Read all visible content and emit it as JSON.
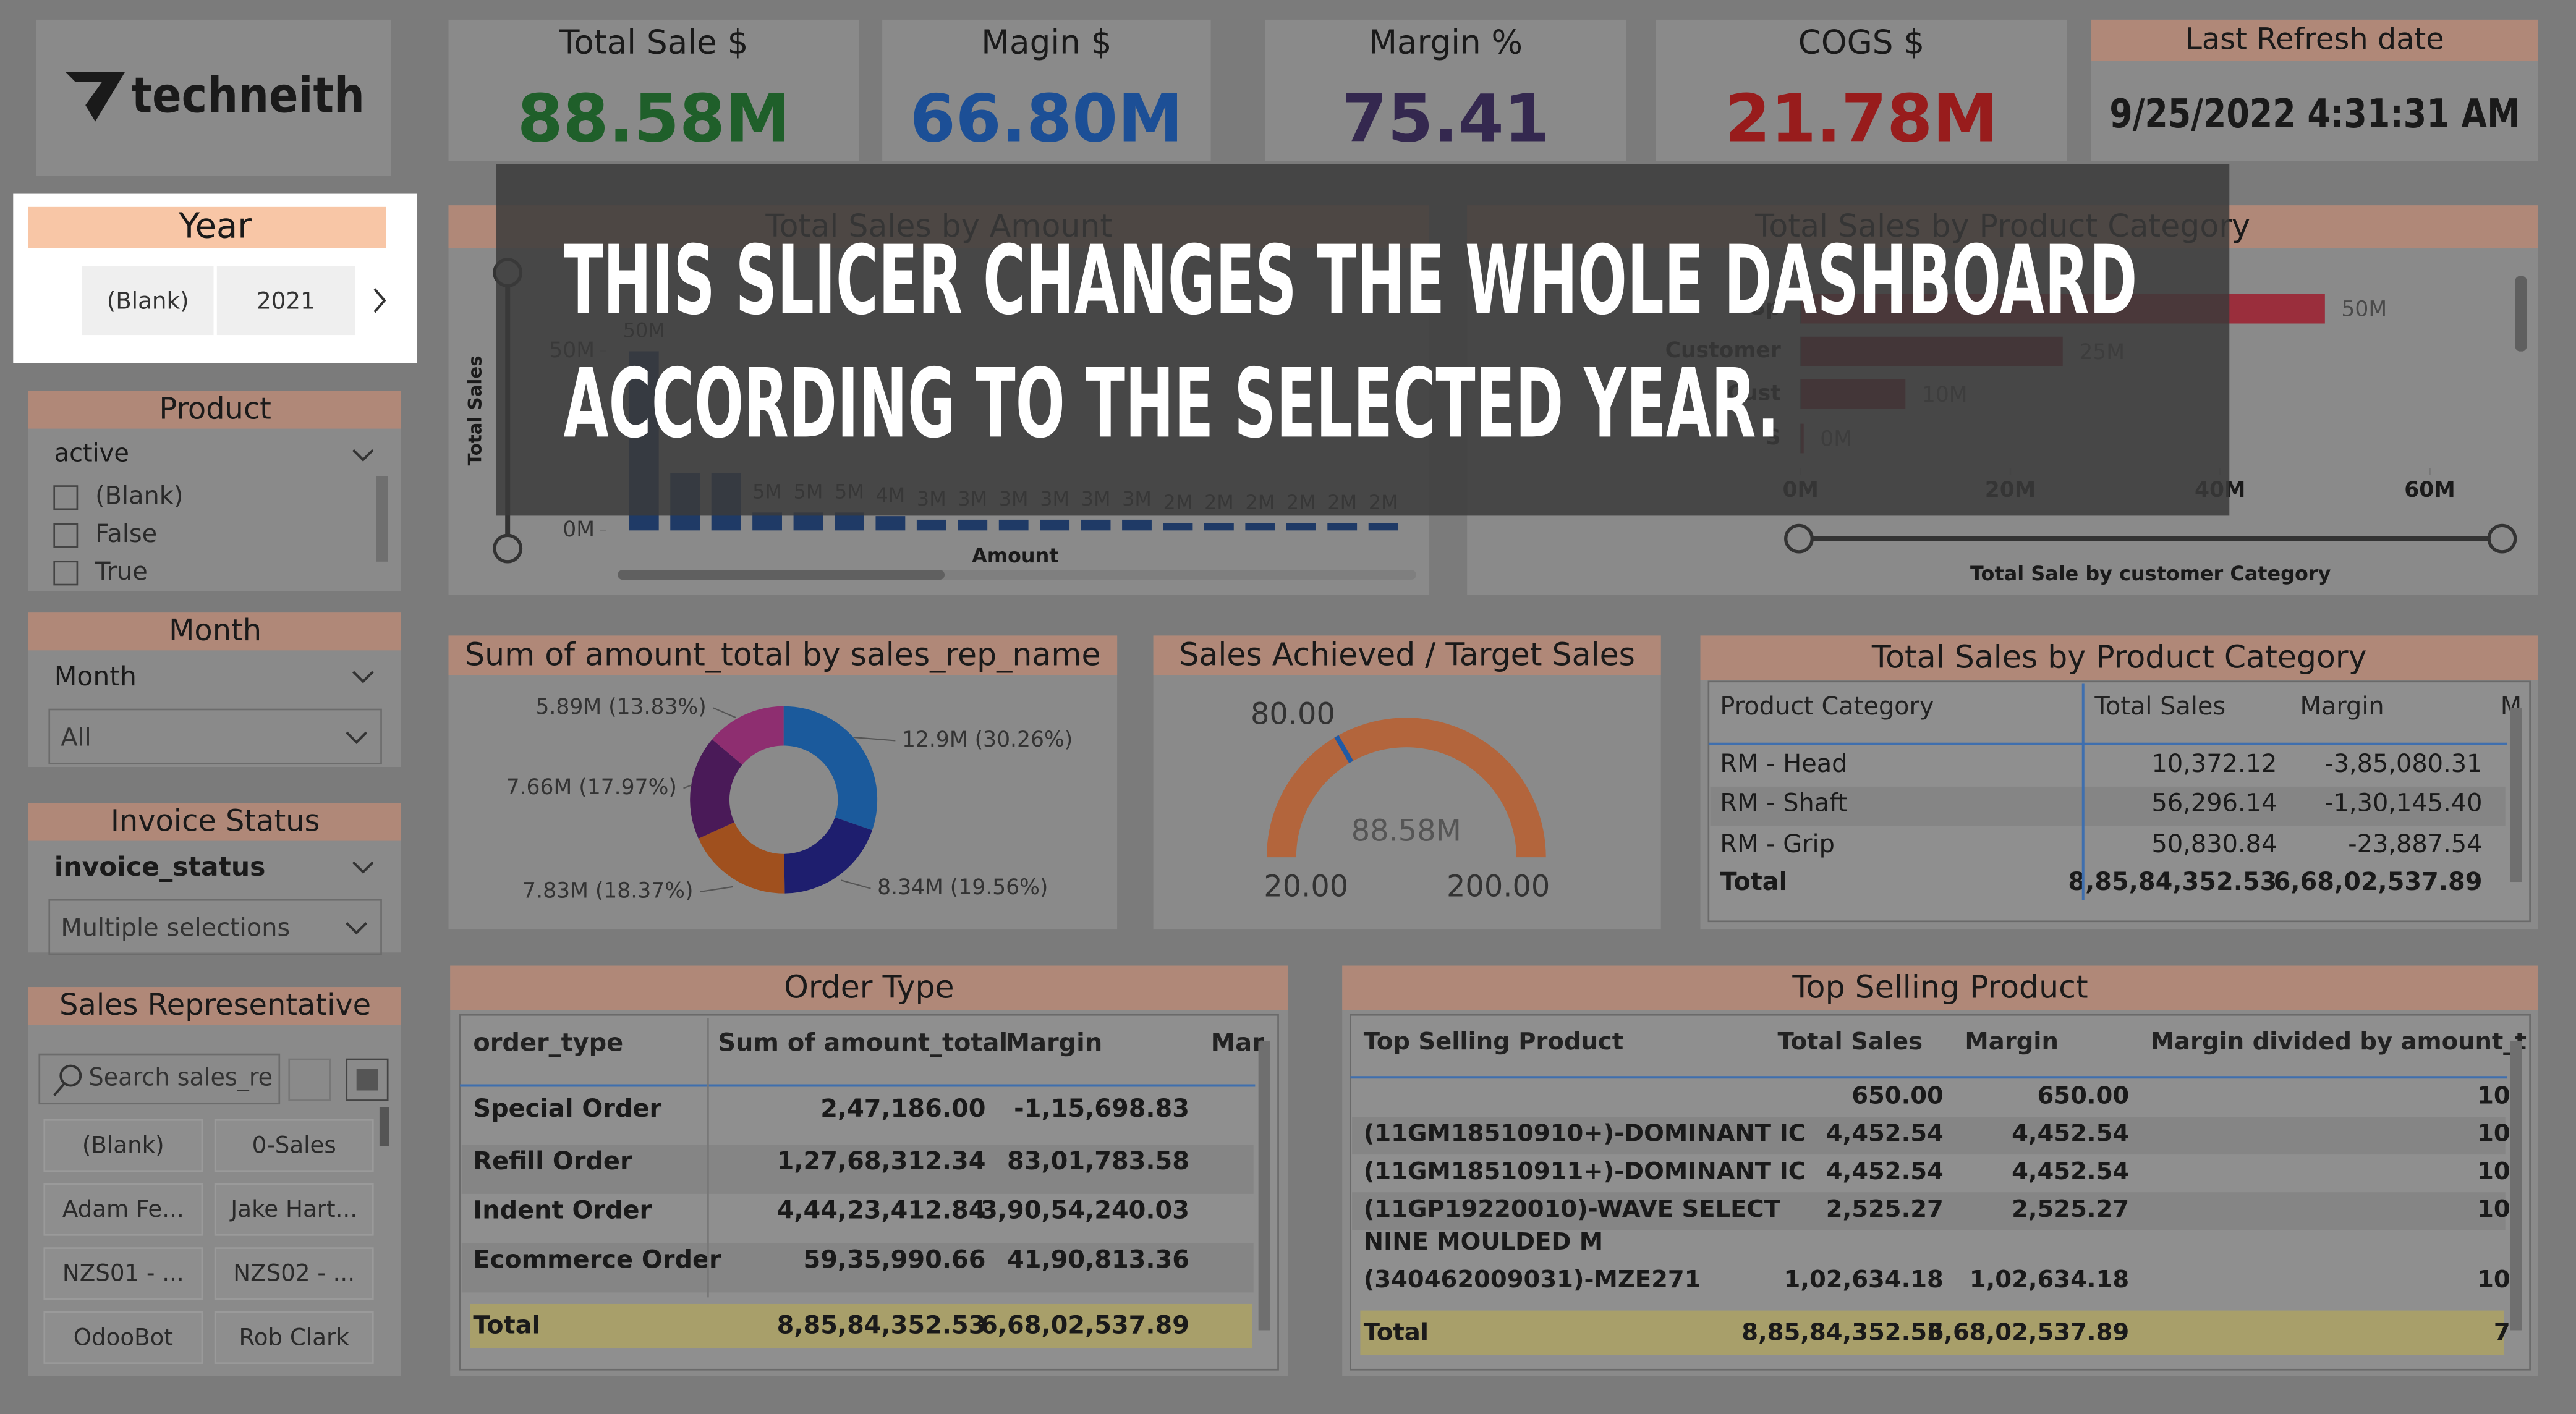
{
  "logo": "techneith",
  "kpis": [
    {
      "title": "Total Sale $",
      "value": "88.58M",
      "color": "#1f5f2a"
    },
    {
      "title": "Magin $",
      "value": "66.80M",
      "color": "#1c4f96"
    },
    {
      "title": "Margin %",
      "value": "75.41",
      "color": "#34284f"
    },
    {
      "title": "COGS $",
      "value": "21.78M",
      "color": "#981c1c"
    }
  ],
  "refresh": {
    "title": "Last Refresh date",
    "value": "9/25/2022 4:31:31 AM"
  },
  "overlay": {
    "lines": [
      "THIS SLICER CHANGES THE WHOLE DASHBOARD",
      "ACCORDING TO THE SELECTED YEAR."
    ]
  },
  "slicers": {
    "year": {
      "title": "Year",
      "options": [
        "(Blank)",
        "2021"
      ]
    },
    "product": {
      "title": "Product",
      "field": "active",
      "options": [
        "(Blank)",
        "False",
        "True"
      ]
    },
    "month": {
      "title": "Month",
      "field": "Month",
      "value": "All"
    },
    "invoice": {
      "title": "Invoice Status",
      "field": "invoice_status",
      "value": "Multiple selections"
    },
    "rep": {
      "title": "Sales Representative",
      "search": "Search sales_re",
      "options": [
        "(Blank)",
        "0-Sales",
        "Adam Fe...",
        "Jake Hart...",
        "NZS01 - ...",
        "NZS02 - ...",
        "OdooBot",
        "Rob Clark"
      ]
    }
  },
  "bar_chart": {
    "type": "bar",
    "title": "Total Sales by Amount",
    "y_label": "Total Sales",
    "x_label": "Amount",
    "values": [
      50,
      16,
      16,
      5,
      5,
      5,
      4,
      3,
      3,
      3,
      3,
      3,
      3,
      2,
      2,
      2,
      2,
      2,
      2
    ],
    "value_labels": [
      "50M",
      null,
      null,
      "5M",
      "5M",
      "5M",
      "4M",
      "3M",
      "3M",
      "3M",
      "3M",
      "3M",
      "3M",
      "2M",
      "2M",
      "2M",
      "2M",
      "2M",
      "2M"
    ],
    "color": "#1f3a66",
    "ylim": [
      0,
      55
    ],
    "yticks": [
      {
        "value": 0,
        "label": "0M"
      },
      {
        "value": 50,
        "label": "50M"
      }
    ]
  },
  "hbar_chart": {
    "type": "hbar",
    "title": "Total Sales by Product Category",
    "x_label": "Total Sale by customer Category",
    "categories": [
      "Sp",
      "Customer",
      "Cust",
      "S"
    ],
    "values": [
      50,
      25,
      10,
      0.3
    ],
    "value_labels": [
      "50M",
      "25M",
      "10M",
      "0M"
    ],
    "colors": [
      "#9a2e3c",
      "#6e2430",
      "#6e2430",
      "#6e2430"
    ],
    "xlim": [
      0,
      60
    ],
    "xticks": [
      {
        "value": 0,
        "label": "0M"
      },
      {
        "value": 20,
        "label": "20M"
      },
      {
        "value": 40,
        "label": "40M"
      },
      {
        "value": 60,
        "label": "60M"
      }
    ]
  },
  "donut": {
    "type": "donut",
    "title": "Sum of amount_total by sales_rep_name",
    "values": [
      30.26,
      19.56,
      18.37,
      17.97,
      13.83
    ],
    "value_labels": [
      "12.9M (30.26%)",
      "8.34M (19.56%)",
      "7.83M (18.37%)",
      "7.66M (17.97%)",
      "5.89M (13.83%)"
    ],
    "colors": [
      "#1b5a9c",
      "#1e1e6e",
      "#a0501e",
      "#4a1a58",
      "#8e2e70"
    ]
  },
  "gauge": {
    "type": "gauge",
    "title": "Sales Achieved / Target Sales",
    "value": "88.58M",
    "min": {
      "value": 20,
      "label": "20.00"
    },
    "max": {
      "value": 200,
      "label": "200.00"
    },
    "target": {
      "value": 80,
      "label": "80.00"
    },
    "color": "#b3653c",
    "target_color": "#1f5aa6"
  },
  "category_table": {
    "title": "Total Sales by Product Category",
    "headers": [
      "Product Category",
      "Total Sales",
      "Margin",
      "M"
    ],
    "rows": [
      [
        "RM - Head",
        "10,372.12",
        "-3,85,080.31"
      ],
      [
        "RM - Shaft",
        "56,296.14",
        "-1,30,145.40"
      ],
      [
        "RM - Grip",
        "50,830.84",
        "-23,887.54"
      ]
    ],
    "total": [
      "Total",
      "8,85,84,352.53",
      "6,68,02,537.89"
    ]
  },
  "order_table": {
    "title": "Order Type",
    "headers": [
      "order_type",
      "Sum of amount_total",
      "Margin",
      "Mar"
    ],
    "rows": [
      [
        "Special Order",
        "2,47,186.00",
        "-1,15,698.83"
      ],
      [
        "Refill Order",
        "1,27,68,312.34",
        "83,01,783.58"
      ],
      [
        "Indent Order",
        "4,44,23,412.84",
        "3,90,54,240.03"
      ],
      [
        "Ecommerce Order",
        "59,35,990.66",
        "41,90,813.36"
      ]
    ],
    "total": [
      "Total",
      "8,85,84,352.53",
      "6,68,02,537.89"
    ]
  },
  "top_table": {
    "title": "Top Selling Product",
    "headers": [
      "Top Selling Product",
      "Total Sales",
      "Margin",
      "Margin divided by amount_t"
    ],
    "rows": [
      [
        null,
        "650.00",
        "650.00",
        "10"
      ],
      [
        "(11GM18510910+)-DOMINANT IC",
        "4,452.54",
        "4,452.54",
        "10"
      ],
      [
        "(11GM18510911+)-DOMINANT IC",
        "4,452.54",
        "4,452.54",
        "10"
      ],
      [
        [
          "(11GP19220010)-WAVE SELECT",
          "NINE MOULDED M"
        ],
        "2,525.27",
        "2,525.27",
        "10"
      ],
      [
        "(340462009031)-MZE271",
        "1,02,634.18",
        "1,02,634.18",
        "10"
      ]
    ],
    "total": [
      "Total",
      "8,85,84,352.53",
      "6,68,02,537.89",
      "7"
    ]
  }
}
